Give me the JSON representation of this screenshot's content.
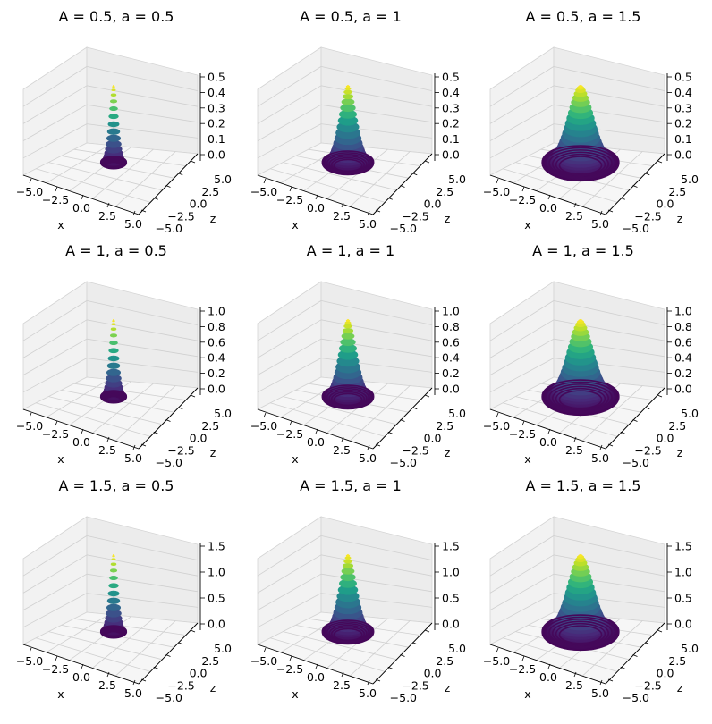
{
  "figure": {
    "rows": 3,
    "cols": 3
  },
  "chart_data": [
    {
      "type": "surface3d",
      "title": "A = 0.5, a = 0.5",
      "params": {
        "A": 0.5,
        "a": 0.5
      },
      "function": "A*exp(-(x^2+y^2)/(2*a^2))",
      "colormap": "viridis",
      "xlabel": "x",
      "ylabel": "",
      "zlabel": "z",
      "xticks": [
        "−5.0",
        "−2.5",
        "0.0",
        "2.5",
        "5.0"
      ],
      "yticks": [
        "5.0",
        "2.5",
        "0.0",
        "−2.5",
        "−5.0"
      ],
      "zticks": [
        "0.0",
        "0.1",
        "0.2",
        "0.3",
        "0.4",
        "0.5"
      ],
      "xlim": [
        -5,
        5
      ],
      "ylim": [
        -5,
        5
      ],
      "zlim": [
        0,
        0.5
      ]
    },
    {
      "type": "surface3d",
      "title": "A = 0.5, a = 1",
      "params": {
        "A": 0.5,
        "a": 1
      },
      "function": "A*exp(-(x^2+y^2)/(2*a^2))",
      "colormap": "viridis",
      "xlabel": "x",
      "ylabel": "",
      "zlabel": "z",
      "xticks": [
        "−5.0",
        "−2.5",
        "0.0",
        "2.5",
        "5.0"
      ],
      "yticks": [
        "5.0",
        "2.5",
        "0.0",
        "−2.5",
        "−5.0"
      ],
      "zticks": [
        "0.0",
        "0.1",
        "0.2",
        "0.3",
        "0.4",
        "0.5"
      ],
      "xlim": [
        -5,
        5
      ],
      "ylim": [
        -5,
        5
      ],
      "zlim": [
        0,
        0.5
      ]
    },
    {
      "type": "surface3d",
      "title": "A = 0.5, a = 1.5",
      "params": {
        "A": 0.5,
        "a": 1.5
      },
      "function": "A*exp(-(x^2+y^2)/(2*a^2))",
      "colormap": "viridis",
      "xlabel": "x",
      "ylabel": "",
      "zlabel": "z",
      "xticks": [
        "−5.0",
        "−2.5",
        "0.0",
        "2.5",
        "5.0"
      ],
      "yticks": [
        "5.0",
        "2.5",
        "0.0",
        "−2.5",
        "−5.0"
      ],
      "zticks": [
        "0.0",
        "0.1",
        "0.2",
        "0.3",
        "0.4",
        "0.5"
      ],
      "xlim": [
        -5,
        5
      ],
      "ylim": [
        -5,
        5
      ],
      "zlim": [
        0,
        0.5
      ]
    },
    {
      "type": "surface3d",
      "title": "A = 1, a = 0.5",
      "params": {
        "A": 1,
        "a": 0.5
      },
      "function": "A*exp(-(x^2+y^2)/(2*a^2))",
      "colormap": "viridis",
      "xlabel": "x",
      "ylabel": "",
      "zlabel": "z",
      "xticks": [
        "−5.0",
        "−2.5",
        "0.0",
        "2.5",
        "5.0"
      ],
      "yticks": [
        "5.0",
        "2.5",
        "0.0",
        "−2.5",
        "−5.0"
      ],
      "zticks": [
        "0.0",
        "0.2",
        "0.4",
        "0.6",
        "0.8",
        "1.0"
      ],
      "xlim": [
        -5,
        5
      ],
      "ylim": [
        -5,
        5
      ],
      "zlim": [
        0,
        1.0
      ]
    },
    {
      "type": "surface3d",
      "title": "A = 1, a = 1",
      "params": {
        "A": 1,
        "a": 1
      },
      "function": "A*exp(-(x^2+y^2)/(2*a^2))",
      "colormap": "viridis",
      "xlabel": "x",
      "ylabel": "",
      "zlabel": "z",
      "xticks": [
        "−5.0",
        "−2.5",
        "0.0",
        "2.5",
        "5.0"
      ],
      "yticks": [
        "5.0",
        "2.5",
        "0.0",
        "−2.5",
        "−5.0"
      ],
      "zticks": [
        "0.0",
        "0.2",
        "0.4",
        "0.6",
        "0.8",
        "1.0"
      ],
      "xlim": [
        -5,
        5
      ],
      "ylim": [
        -5,
        5
      ],
      "zlim": [
        0,
        1.0
      ]
    },
    {
      "type": "surface3d",
      "title": "A = 1, a = 1.5",
      "params": {
        "A": 1,
        "a": 1.5
      },
      "function": "A*exp(-(x^2+y^2)/(2*a^2))",
      "colormap": "viridis",
      "xlabel": "x",
      "ylabel": "",
      "zlabel": "z",
      "xticks": [
        "−5.0",
        "−2.5",
        "0.0",
        "2.5",
        "5.0"
      ],
      "yticks": [
        "5.0",
        "2.5",
        "0.0",
        "−2.5",
        "−5.0"
      ],
      "zticks": [
        "0.0",
        "0.2",
        "0.4",
        "0.6",
        "0.8",
        "1.0"
      ],
      "xlim": [
        -5,
        5
      ],
      "ylim": [
        -5,
        5
      ],
      "zlim": [
        0,
        1.0
      ]
    },
    {
      "type": "surface3d",
      "title": "A = 1.5, a = 0.5",
      "params": {
        "A": 1.5,
        "a": 0.5
      },
      "function": "A*exp(-(x^2+y^2)/(2*a^2))",
      "colormap": "viridis",
      "xlabel": "x",
      "ylabel": "",
      "zlabel": "z",
      "xticks": [
        "−5.0",
        "−2.5",
        "0.0",
        "2.5",
        "5.0"
      ],
      "yticks": [
        "5.0",
        "2.5",
        "0.0",
        "−2.5",
        "−5.0"
      ],
      "zticks": [
        "0.0",
        "0.5",
        "1.0",
        "1.5"
      ],
      "xlim": [
        -5,
        5
      ],
      "ylim": [
        -5,
        5
      ],
      "zlim": [
        0,
        1.5
      ]
    },
    {
      "type": "surface3d",
      "title": "A = 1.5, a = 1",
      "params": {
        "A": 1.5,
        "a": 1
      },
      "function": "A*exp(-(x^2+y^2)/(2*a^2))",
      "colormap": "viridis",
      "xlabel": "x",
      "ylabel": "",
      "zlabel": "z",
      "xticks": [
        "−5.0",
        "−2.5",
        "0.0",
        "2.5",
        "5.0"
      ],
      "yticks": [
        "5.0",
        "2.5",
        "0.0",
        "−2.5",
        "−5.0"
      ],
      "zticks": [
        "0.0",
        "0.5",
        "1.0",
        "1.5"
      ],
      "xlim": [
        -5,
        5
      ],
      "ylim": [
        -5,
        5
      ],
      "zlim": [
        0,
        1.5
      ]
    },
    {
      "type": "surface3d",
      "title": "A = 1.5, a = 1.5",
      "params": {
        "A": 1.5,
        "a": 1.5
      },
      "function": "A*exp(-(x^2+y^2)/(2*a^2))",
      "colormap": "viridis",
      "xlabel": "x",
      "ylabel": "",
      "zlabel": "z",
      "xticks": [
        "−5.0",
        "−2.5",
        "0.0",
        "2.5",
        "5.0"
      ],
      "yticks": [
        "5.0",
        "2.5",
        "0.0",
        "−2.5",
        "−5.0"
      ],
      "zticks": [
        "0.0",
        "0.5",
        "1.0",
        "1.5"
      ],
      "xlim": [
        -5,
        5
      ],
      "ylim": [
        -5,
        5
      ],
      "zlim": [
        0,
        1.5
      ]
    }
  ]
}
